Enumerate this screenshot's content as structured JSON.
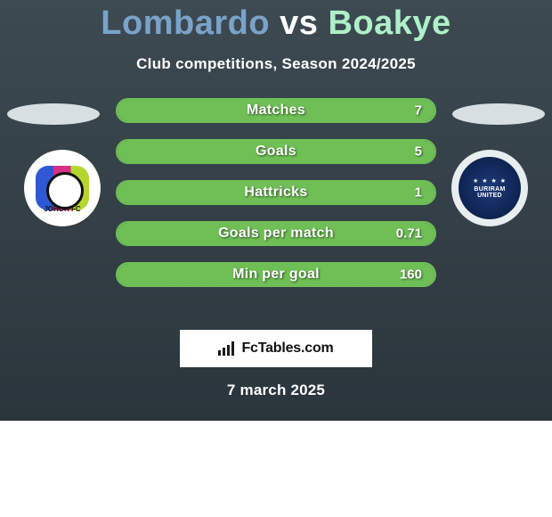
{
  "header": {
    "title_a": "Lombardo",
    "title_vs": "vs",
    "title_b": "Boakye",
    "title_a_color": "#7aa3c9",
    "title_b_color": "#aef0c8",
    "subtitle": "Club competitions, Season 2024/2025"
  },
  "players": {
    "left": {
      "club_label": "JOHOR FC"
    },
    "right": {
      "club_label": "BURIRAM",
      "club_sub": "UNITED"
    }
  },
  "stats": {
    "border_color": "#6fbf56",
    "fill_color": "#6fbf56",
    "rows": [
      {
        "label": "Matches",
        "right_value": "7",
        "fill_pct": 100
      },
      {
        "label": "Goals",
        "right_value": "5",
        "fill_pct": 100
      },
      {
        "label": "Hattricks",
        "right_value": "1",
        "fill_pct": 100
      },
      {
        "label": "Goals per match",
        "right_value": "0.71",
        "fill_pct": 100
      },
      {
        "label": "Min per goal",
        "right_value": "160",
        "fill_pct": 100
      }
    ]
  },
  "brand": {
    "text": "FcTables.com"
  },
  "footer": {
    "date": "7 march 2025"
  },
  "card_bg": "linear-gradient(180deg,#3d4a52 0%,#2b353c 100%)"
}
